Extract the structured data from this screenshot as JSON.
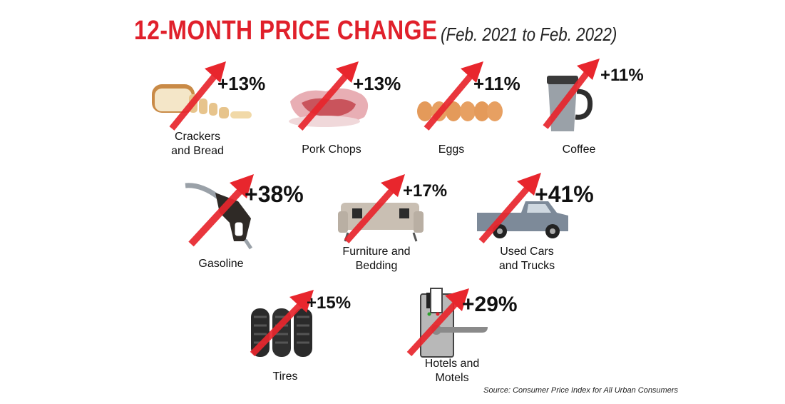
{
  "chart_data": {
    "type": "table",
    "title": "12-MONTH PRICE CHANGE",
    "subtitle": "(Feb. 2021 to Feb. 2022)",
    "items": [
      {
        "category": "Crackers and Bread",
        "label_lines": [
          "Crackers",
          "and Bread"
        ],
        "value": 13,
        "label": "+13%"
      },
      {
        "category": "Pork Chops",
        "label_lines": [
          "Pork Chops"
        ],
        "value": 13,
        "label": "+13%"
      },
      {
        "category": "Eggs",
        "label_lines": [
          "Eggs"
        ],
        "value": 11,
        "label": "+11%"
      },
      {
        "category": "Coffee",
        "label_lines": [
          "Coffee"
        ],
        "value": 11,
        "label": "+11%"
      },
      {
        "category": "Gasoline",
        "label_lines": [
          "Gasoline"
        ],
        "value": 38,
        "label": "+38%"
      },
      {
        "category": "Furniture and Bedding",
        "label_lines": [
          "Furniture and",
          "Bedding"
        ],
        "value": 17,
        "label": "+17%"
      },
      {
        "category": "Used Cars and Trucks",
        "label_lines": [
          "Used Cars",
          "and Trucks"
        ],
        "value": 41,
        "label": "+41%"
      },
      {
        "category": "Tires",
        "label_lines": [
          "Tires"
        ],
        "value": 15,
        "label": "+15%"
      },
      {
        "category": "Hotels and Motels",
        "label_lines": [
          "Hotels and",
          "Motels"
        ],
        "value": 29,
        "label": "+29%"
      }
    ],
    "source": "Source: Consumer Price Index for All Urban Consumers"
  },
  "colors": {
    "accent": "#e0202b",
    "arrow": "#e8262d",
    "text": "#111111"
  }
}
